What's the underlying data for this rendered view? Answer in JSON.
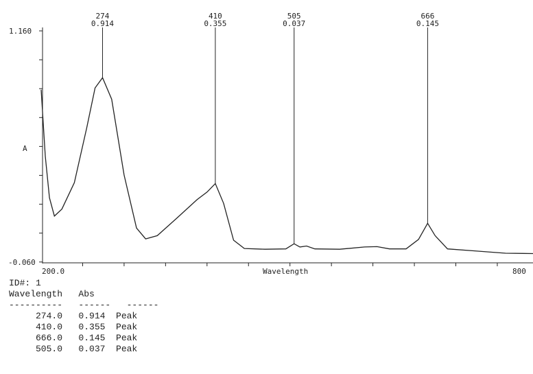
{
  "chart_data": {
    "type": "line",
    "xlabel": "Wavelength",
    "ylabel": "A",
    "xlim": [
      200.0,
      800
    ],
    "ylim": [
      -0.06,
      1.16
    ],
    "x_tick_labels": [
      "200.0",
      "Wavelength",
      "800"
    ],
    "y_tick_labels": [
      "1.160",
      "-0.060"
    ],
    "grid": false,
    "series": [
      {
        "x": [
          200,
          205,
          210,
          216,
          225,
          240,
          255,
          265,
          274,
          285,
          300,
          315,
          326,
          340,
          363,
          388,
          400,
          410,
          420,
          432,
          445,
          470,
          495,
          505,
          512,
          520,
          530,
          560,
          590,
          605,
          620,
          640,
          655,
          666,
          675,
          690,
          720,
          760,
          800
        ],
        "y": [
          0.85,
          0.5,
          0.28,
          0.183,
          0.22,
          0.36,
          0.65,
          0.86,
          0.914,
          0.8,
          0.4,
          0.12,
          0.063,
          0.08,
          0.17,
          0.27,
          0.31,
          0.355,
          0.25,
          0.056,
          0.012,
          0.008,
          0.01,
          0.037,
          0.02,
          0.025,
          0.01,
          0.008,
          0.02,
          0.022,
          0.01,
          0.01,
          0.06,
          0.145,
          0.08,
          0.01,
          0.0,
          -0.013,
          -0.015
        ]
      }
    ],
    "peaks": [
      {
        "wl": "274",
        "abs": "0.914"
      },
      {
        "wl": "410",
        "abs": "0.355"
      },
      {
        "wl": "505",
        "abs": "0.037"
      },
      {
        "wl": "666",
        "abs": "0.145"
      }
    ]
  },
  "table": {
    "id": "ID#: 1",
    "headers": [
      "Wavelength",
      "Abs",
      ""
    ],
    "separator": "----------   ------   ------",
    "rows": [
      [
        "274.0",
        "0.914",
        "Peak"
      ],
      [
        "410.0",
        "0.355",
        "Peak"
      ],
      [
        "666.0",
        "0.145",
        "Peak"
      ],
      [
        "505.0",
        "0.037",
        "Peak"
      ]
    ]
  }
}
